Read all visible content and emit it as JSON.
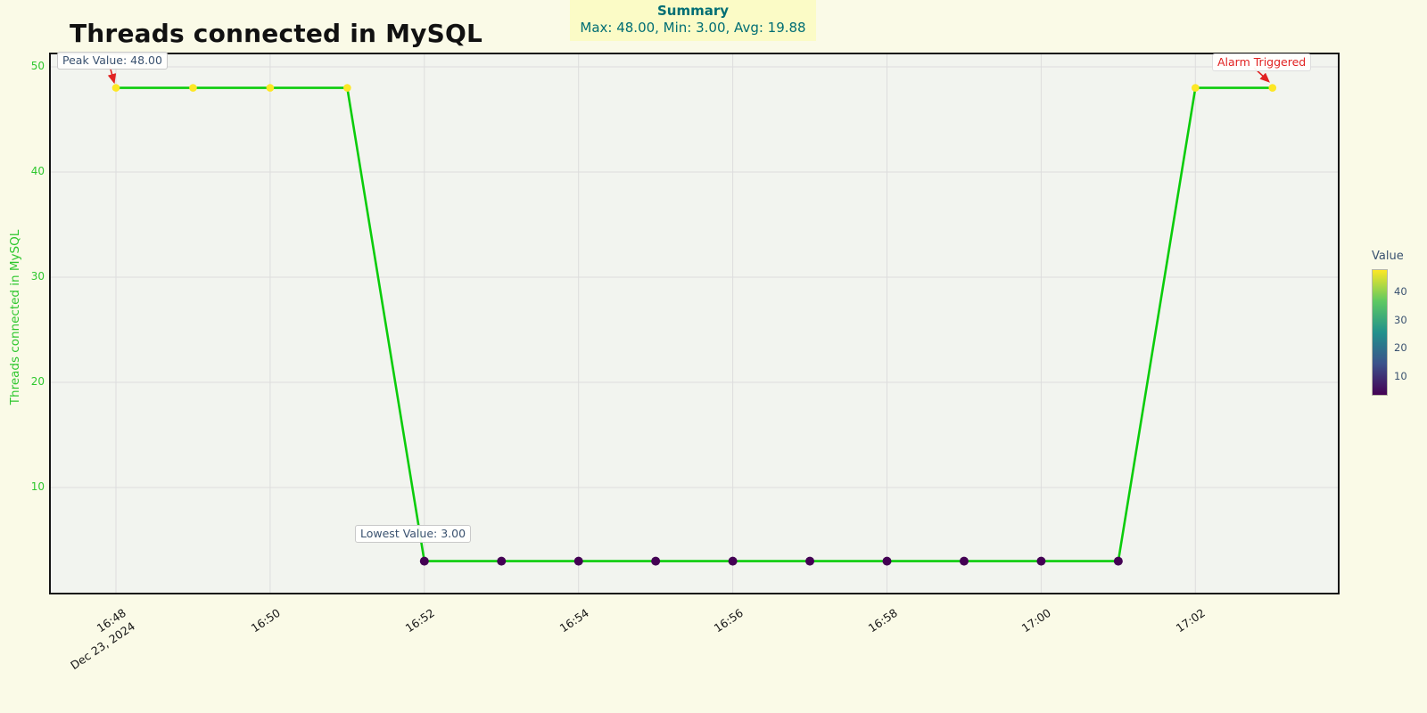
{
  "page": {
    "background": "#FAFAE7"
  },
  "header": {
    "title": "Threads connected in MySQL",
    "summary": {
      "title": "Summary",
      "text": "Max: 48.00, Min: 3.00, Avg: 19.88",
      "bg": "#FBFBC6",
      "color": "#006E74"
    }
  },
  "chart_data": {
    "type": "line",
    "title": "Threads connected in MySQL",
    "xlabel": "",
    "ylabel": "Threads connected in MySQL",
    "x": [
      "16:48",
      "16:49",
      "16:50",
      "16:51",
      "16:52",
      "16:53",
      "16:54",
      "16:55",
      "16:56",
      "16:57",
      "16:58",
      "16:59",
      "17:00",
      "17:01",
      "17:02",
      "17:03"
    ],
    "values": [
      48,
      48,
      48,
      48,
      3,
      3,
      3,
      3,
      3,
      3,
      3,
      3,
      3,
      3,
      48,
      48
    ],
    "date_label": "Dec 23, 2024",
    "x_tick_labels": [
      "16:48",
      "16:50",
      "16:52",
      "16:54",
      "16:56",
      "16:58",
      "17:00",
      "17:02"
    ],
    "y_ticks": [
      10,
      20,
      30,
      40,
      50
    ],
    "ylim": [
      0,
      51.4
    ],
    "grid": true,
    "stats": {
      "max": 48.0,
      "min": 3.0,
      "avg": 19.88
    },
    "colors": {
      "line": "#0BCC0B",
      "axis_green": "#2EC72E",
      "x_tick": "#151515",
      "grid": "#DDDDDD",
      "plot_bg": "#F2F4EF",
      "annotation_slate": "#3A5270",
      "alarm_red": "#E12222"
    },
    "annotations": [
      {
        "id": "peak",
        "label": "Peak Value: 48.00",
        "target_index": 0,
        "color": "#3A5270",
        "arrow": true,
        "arrow_color": "#E12222"
      },
      {
        "id": "lowest",
        "label": "Lowest Value: 3.00",
        "target_index": 4,
        "color": "#3A5270",
        "arrow": false,
        "arrow_color": "#E12222"
      },
      {
        "id": "alarm",
        "label": "Alarm Triggered",
        "target_index": 15,
        "color": "#E12222",
        "arrow": true,
        "arrow_color": "#E12222"
      }
    ],
    "colorbar": {
      "title": "Value",
      "ticks": [
        10,
        20,
        30,
        40
      ],
      "vmin": 3,
      "vmax": 48,
      "colormap": "viridis",
      "gradient_stops": [
        "#440154",
        "#3B528B",
        "#21918C",
        "#5EC962",
        "#FDE725"
      ]
    }
  }
}
